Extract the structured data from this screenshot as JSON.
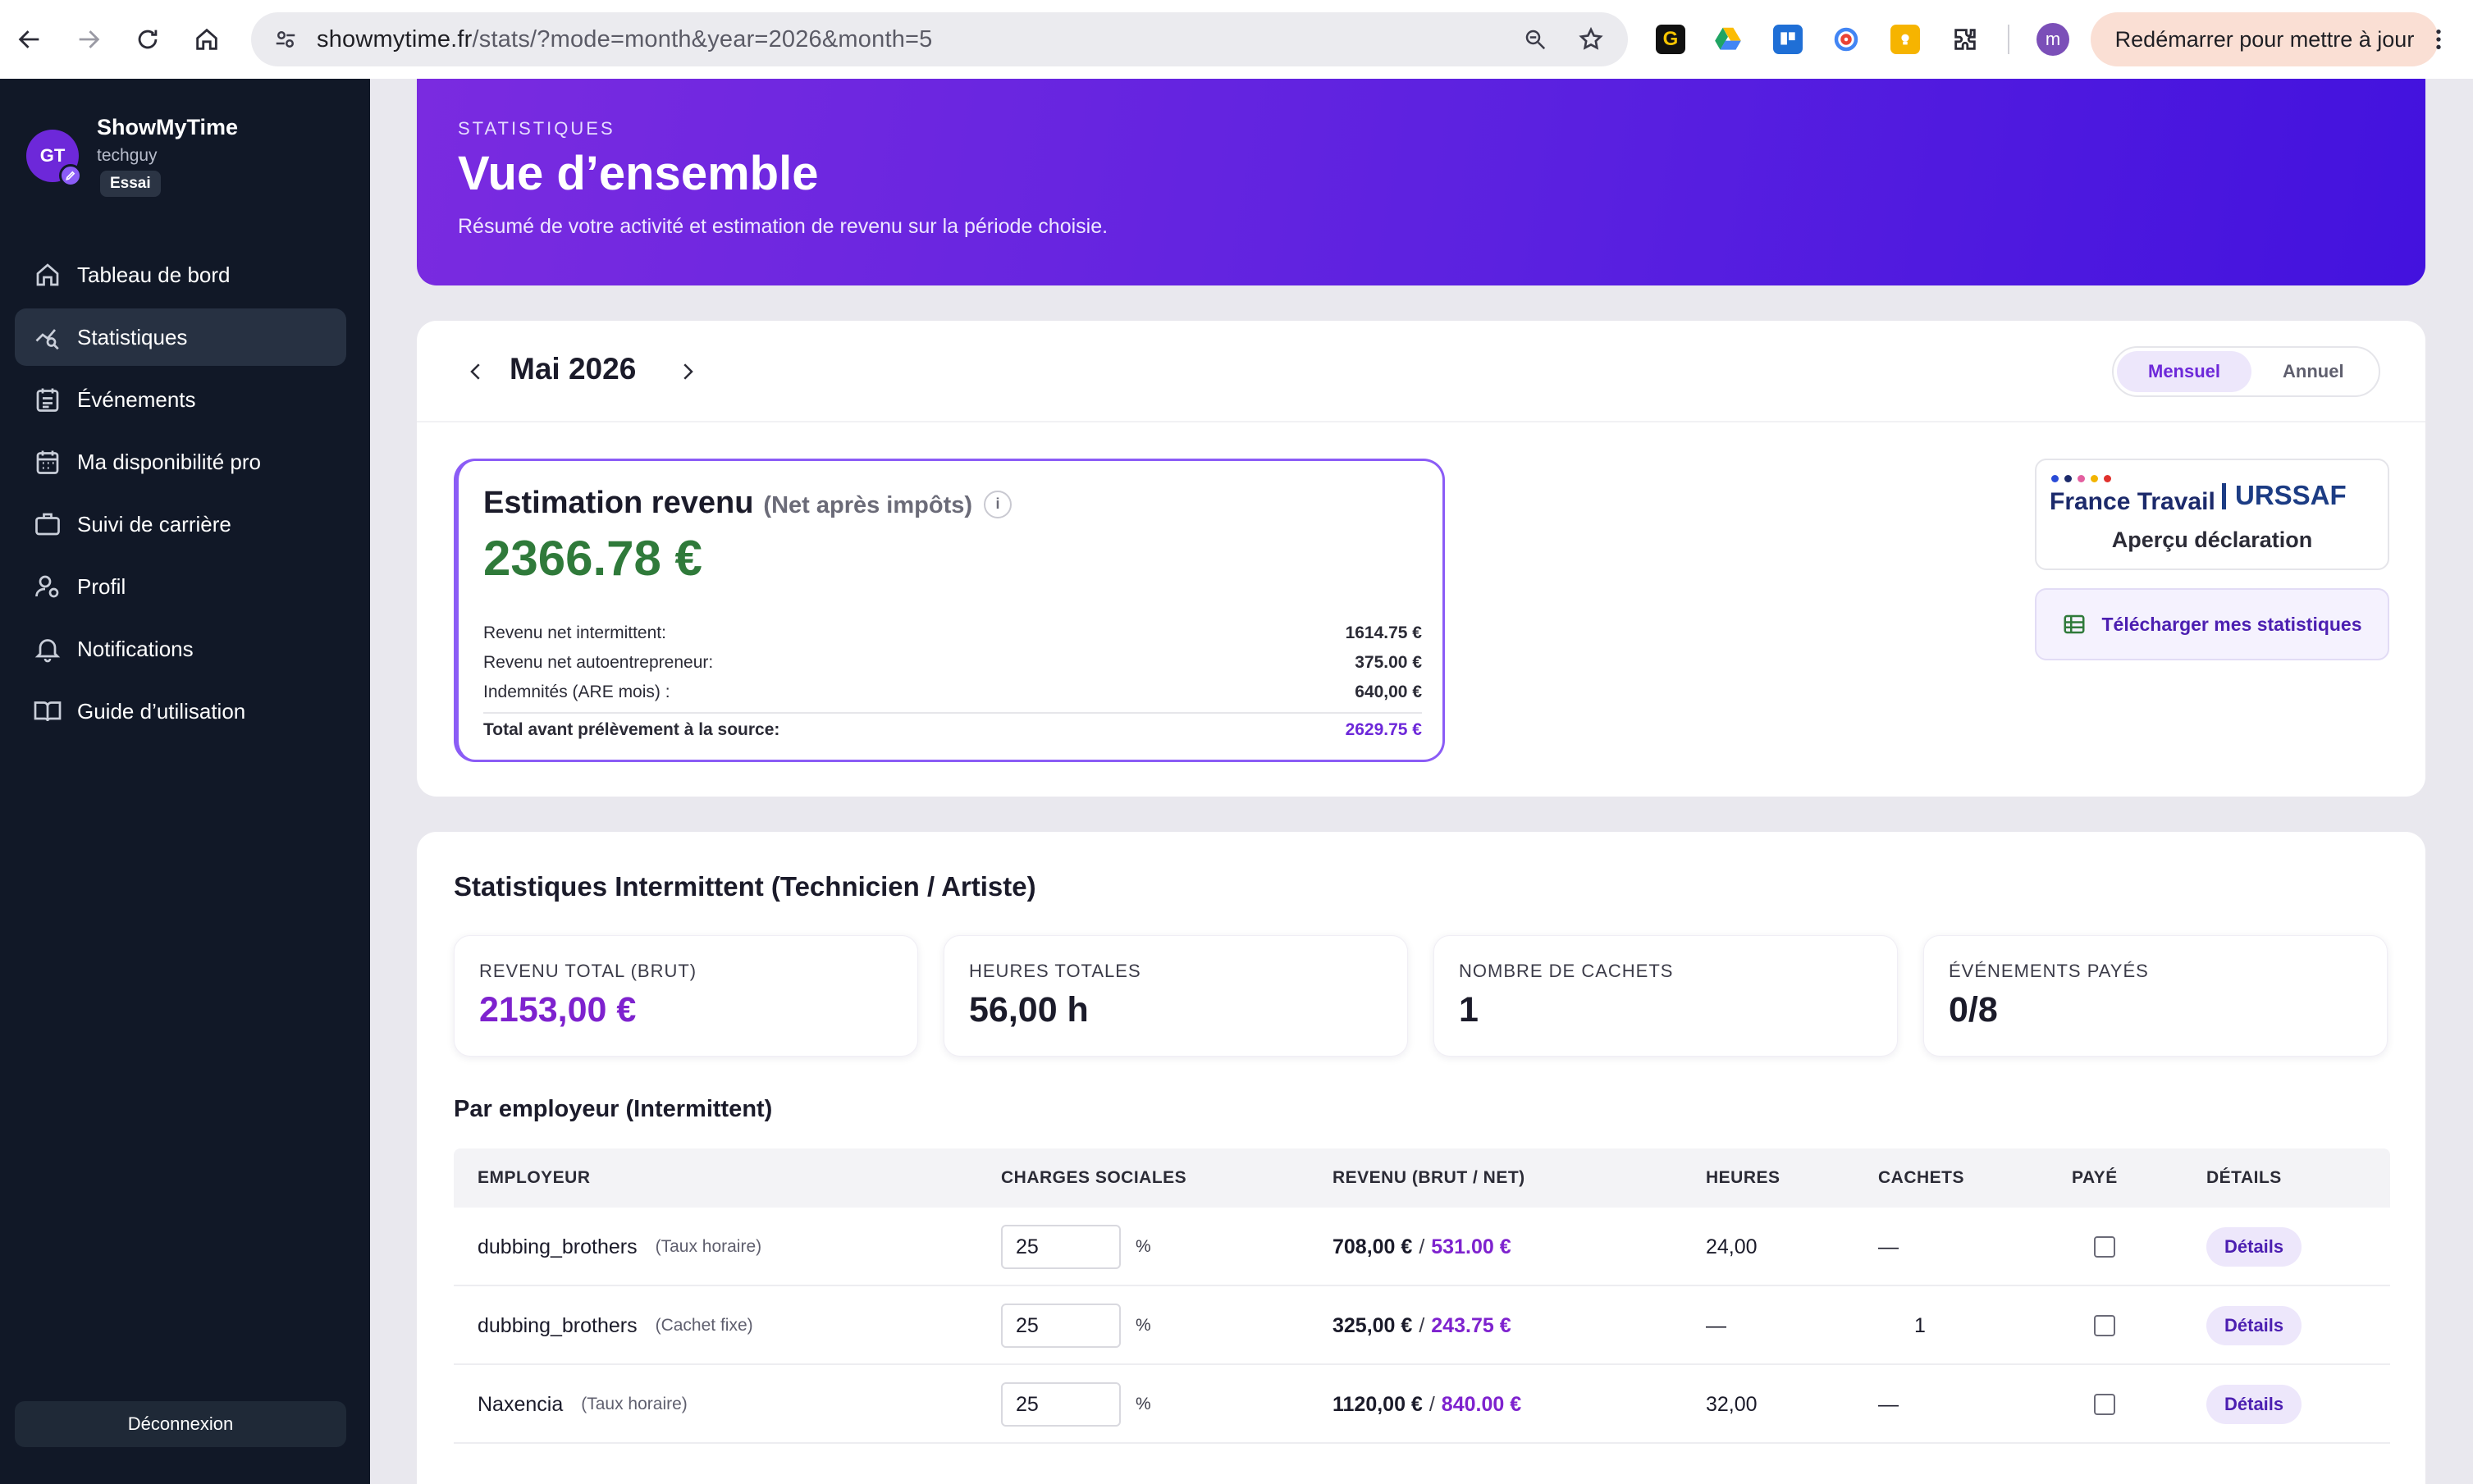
{
  "browser": {
    "url_host": "showmytime.fr",
    "url_path": "/stats/?mode=month&year=2026&month=5",
    "profile_initial": "m",
    "restart_label": "Redémarrer pour mettre à jour"
  },
  "sidebar": {
    "app_name": "ShowMyTime",
    "username": "techguy",
    "avatar_initials": "GT",
    "plan_badge": "Essai",
    "items": [
      {
        "label": "Tableau de bord",
        "icon": "home-icon"
      },
      {
        "label": "Statistiques",
        "icon": "chart-search-icon"
      },
      {
        "label": "Événements",
        "icon": "calendar-list-icon"
      },
      {
        "label": "Ma disponibilité pro",
        "icon": "calendar-grid-icon"
      },
      {
        "label": "Suivi de carrière",
        "icon": "briefcase-icon"
      },
      {
        "label": "Profil",
        "icon": "user-settings-icon"
      },
      {
        "label": "Notifications",
        "icon": "bell-icon"
      },
      {
        "label": "Guide d’utilisation",
        "icon": "book-icon"
      }
    ],
    "logout_label": "Déconnexion"
  },
  "hero": {
    "kicker": "STATISTIQUES",
    "title": "Vue d’ensemble",
    "subtitle": "Résumé de votre activité et estimation de revenu sur la période choisie."
  },
  "period": {
    "title": "Mai 2026",
    "mode_monthly": "Mensuel",
    "mode_annual": "Annuel"
  },
  "estimation": {
    "title": "Estimation revenu",
    "qualifier": "(Net après impôts)",
    "info": "i",
    "amount": "2366.78 €",
    "rows": [
      {
        "label": "Revenu net intermittent:",
        "value": "1614.75 €"
      },
      {
        "label": "Revenu net autoentrepreneur:",
        "value": "375.00 €"
      },
      {
        "label": "Indemnités (ARE mois) :",
        "value": "640,00 €"
      }
    ],
    "total_label": "Total avant prélèvement à la source:",
    "total_value": "2629.75 €"
  },
  "declaration": {
    "france_travail": "France Travail",
    "urssaf": "URSSAF",
    "label": "Aperçu déclaration",
    "download_label": "Télécharger mes statistiques"
  },
  "intermittent": {
    "title": "Statistiques Intermittent (Technicien / Artiste)",
    "stats": [
      {
        "label": "REVENU TOTAL (BRUT)",
        "value": "2153,00 €"
      },
      {
        "label": "HEURES TOTALES",
        "value": "56,00 h"
      },
      {
        "label": "NOMBRE DE CACHETS",
        "value": "1"
      },
      {
        "label": "ÉVÉNEMENTS PAYÉS",
        "value": "0/8"
      }
    ],
    "by_employer_title": "Par employeur (Intermittent)",
    "columns": {
      "employer": "EMPLOYEUR",
      "charges": "CHARGES SOCIALES",
      "revenue": "REVENU (BRUT / NET)",
      "hours": "HEURES",
      "cachets": "CACHETS",
      "paid": "PAYÉ",
      "details": "DÉTAILS"
    },
    "rows": [
      {
        "employer": "dubbing_brothers",
        "mode": "(Taux horaire)",
        "charges": "25",
        "pct": "%",
        "brut": "708,00 €",
        "sep": "/",
        "net": "531.00 €",
        "hours": "24,00",
        "cachets": "—",
        "details": "Détails"
      },
      {
        "employer": "dubbing_brothers",
        "mode": "(Cachet fixe)",
        "charges": "25",
        "pct": "%",
        "brut": "325,00 €",
        "sep": "/",
        "net": "243.75 €",
        "hours": "—",
        "cachets": "1",
        "details": "Détails"
      },
      {
        "employer": "Naxencia",
        "mode": "(Taux horaire)",
        "charges": "25",
        "pct": "%",
        "brut": "1120,00 €",
        "sep": "/",
        "net": "840.00 €",
        "hours": "32,00",
        "cachets": "—",
        "details": "Détails"
      }
    ]
  }
}
